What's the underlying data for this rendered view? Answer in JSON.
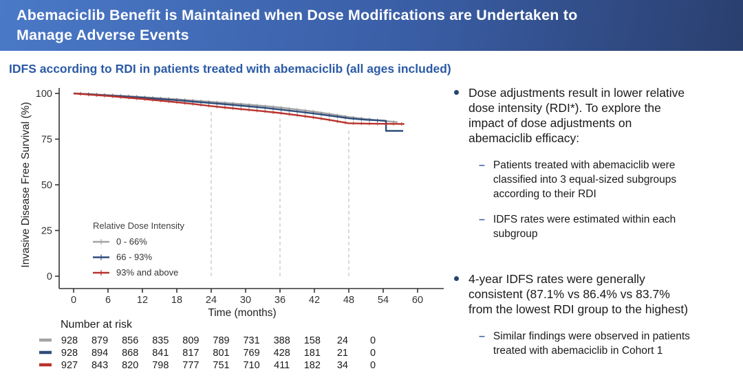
{
  "header": {
    "title_line1": "Abemaciclib Benefit is Maintained when Dose Modifications are Undertaken to",
    "title_line2": "Manage Adverse Events",
    "bg_left": "#4a79c7",
    "bg_right": "#2a3f6e"
  },
  "subtitle": "IDFS according to RDI in patients treated with abemaciclib (all ages included)",
  "chart_data": {
    "type": "line",
    "subtype": "kaplan-meier",
    "xlabel": "Time (months)",
    "ylabel": "Invasive Disease Free Survival (%)",
    "xlim": [
      0,
      63
    ],
    "ylim": [
      0,
      100
    ],
    "xticks": [
      0,
      6,
      12,
      18,
      24,
      30,
      36,
      42,
      48,
      54,
      60
    ],
    "yticks": [
      0,
      25,
      50,
      75,
      100
    ],
    "grid": false,
    "dashed_vlines_months": [
      24,
      36,
      48
    ],
    "dashed_vline_color": "#c9c9c9",
    "axis_color": "#333333",
    "legend": {
      "title": "Relative Dose Intensity",
      "position": "inside-lower-left",
      "entries": [
        "0 - 66%",
        "66 - 93%",
        "93% and above"
      ]
    },
    "series": [
      {
        "name": "0 - 66%",
        "color": "#a3a3a3",
        "x": [
          0,
          3,
          6,
          9,
          12,
          15,
          18,
          21,
          24,
          27,
          30,
          33,
          36,
          39,
          42,
          45,
          48,
          51,
          54,
          56.5
        ],
        "y": [
          100,
          99.6,
          99.1,
          98.6,
          98.0,
          97.4,
          96.8,
          96.1,
          95.4,
          94.7,
          94.0,
          93.2,
          92.3,
          91.2,
          90.0,
          88.6,
          87.1,
          86.0,
          85.0,
          84.3
        ]
      },
      {
        "name": "66 - 93%",
        "color": "#2e4d7b",
        "x": [
          0,
          3,
          6,
          9,
          12,
          15,
          18,
          21,
          24,
          27,
          30,
          33,
          36,
          39,
          42,
          45,
          48,
          51,
          54,
          54.5,
          54.5,
          57.5
        ],
        "y": [
          100,
          99.5,
          98.9,
          98.3,
          97.7,
          97.0,
          96.3,
          95.5,
          94.7,
          93.9,
          93.1,
          92.2,
          91.2,
          90.1,
          89.0,
          87.7,
          86.4,
          85.6,
          85.1,
          85.0,
          79.5,
          79.5
        ]
      },
      {
        "name": "93% and above",
        "color": "#b8322c",
        "x": [
          0,
          3,
          6,
          9,
          12,
          15,
          18,
          21,
          24,
          27,
          30,
          33,
          36,
          39,
          42,
          45,
          48,
          51,
          54,
          57.7
        ],
        "y": [
          100,
          99.3,
          98.6,
          97.8,
          97.0,
          96.1,
          95.2,
          94.2,
          93.1,
          92.1,
          91.2,
          90.3,
          89.3,
          88.1,
          86.8,
          85.3,
          83.7,
          83.5,
          83.4,
          83.3
        ]
      }
    ],
    "key_stats": {
      "four_year_idfs_rates": [
        "87.1%",
        "86.4%",
        "83.7%"
      ]
    },
    "number_at_risk": {
      "label": "Number at risk",
      "columns_months": [
        0,
        6,
        12,
        18,
        24,
        30,
        36,
        42,
        48,
        54,
        60
      ],
      "rows": [
        {
          "group": "0 - 66%",
          "color": "#a3a3a3",
          "values": [
            928,
            879,
            856,
            835,
            809,
            789,
            731,
            388,
            158,
            24,
            0
          ]
        },
        {
          "group": "66 - 93%",
          "color": "#2e4d7b",
          "values": [
            928,
            894,
            868,
            841,
            817,
            801,
            769,
            428,
            181,
            21,
            0
          ]
        },
        {
          "group": "93% and above",
          "color": "#b8322c",
          "values": [
            927,
            843,
            820,
            798,
            777,
            751,
            710,
            411,
            182,
            34,
            0
          ]
        }
      ]
    }
  },
  "right_panel": {
    "bullet1": {
      "lines": [
        "Dose adjustments result in lower relative",
        "dose intensity (RDI*). To explore the",
        "impact of dose adjustments on",
        "abemaciclib efficacy:"
      ]
    },
    "sub1": {
      "lines": [
        "Patients treated with abemaciclib were",
        "classified into 3 equal-sized subgroups",
        "according to their RDI"
      ]
    },
    "sub2": {
      "lines": [
        "IDFS rates were estimated within each",
        "subgroup"
      ]
    },
    "bullet2": {
      "lines": [
        "4-year IDFS rates were generally",
        "consistent (87.1% vs 86.4% vs 83.7%",
        "from the lowest RDI group to the highest)"
      ]
    },
    "sub3": {
      "lines": [
        "Similar findings were observed in patients",
        "treated with abemaciclib in Cohort 1"
      ]
    }
  }
}
